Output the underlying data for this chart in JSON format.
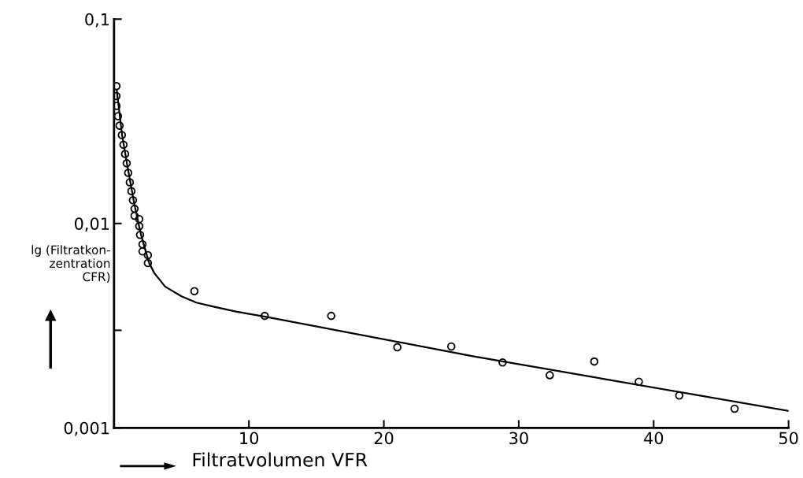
{
  "chart_data": {
    "type": "scatter",
    "xlabel": "Filtratvolumen VFR",
    "ylabel": "lg (Filtratkon-\nzentration\nCFR)",
    "log": "y",
    "xlim": [
      0,
      50
    ],
    "ylim": [
      0.001,
      0.1
    ],
    "xticks": [
      {
        "value": 0,
        "label": null
      },
      10,
      20,
      30,
      40,
      50
    ],
    "yticks": [
      {
        "value": 0.001,
        "label": "0,001"
      },
      {
        "value": 0.003,
        "label": null
      },
      {
        "value": 0.01,
        "label": "0,01"
      },
      {
        "value": 0.1,
        "label": "0,1"
      }
    ],
    "grid": false,
    "legend": false,
    "series": [
      {
        "marker": "circle",
        "color": "#000000",
        "x": [
          0.18,
          0.18,
          0.18,
          0.29,
          0.41,
          0.58,
          0.7,
          0.82,
          0.94,
          1.05,
          1.17,
          1.29,
          1.4,
          1.52,
          1.52,
          1.87,
          1.87,
          1.93,
          2.11,
          2.11,
          2.51,
          2.51,
          5.96,
          11.17,
          16.1,
          21.0,
          25.0,
          28.8,
          32.3,
          35.6,
          38.9,
          41.9,
          46.0
        ],
        "values": [
          0.047,
          0.042,
          0.0376,
          0.0335,
          0.0301,
          0.0271,
          0.0243,
          0.0219,
          0.0197,
          0.0177,
          0.0159,
          0.0144,
          0.013,
          0.0118,
          0.0109,
          0.0105,
          0.0097,
          0.0088,
          0.0079,
          0.0073,
          0.007,
          0.0064,
          0.00466,
          0.00353,
          0.00353,
          0.00248,
          0.0025,
          0.00209,
          0.00181,
          0.00211,
          0.00168,
          0.00144,
          0.00124
        ]
      },
      {
        "type": "line",
        "color": "#000000",
        "marker": "none",
        "line_style": "solid",
        "x": [
          0.2,
          0.6,
          1.0,
          1.5,
          2.0,
          2.6,
          3.0,
          3.8,
          5.0,
          6.1,
          7.5,
          9.1,
          11.2,
          26.6,
          50.0
        ],
        "values": [
          0.045,
          0.027,
          0.019,
          0.0125,
          0.0088,
          0.0064,
          0.0057,
          0.0049,
          0.0044,
          0.0041,
          0.0039,
          0.0037,
          0.0035,
          0.00224,
          0.00121
        ]
      }
    ]
  }
}
